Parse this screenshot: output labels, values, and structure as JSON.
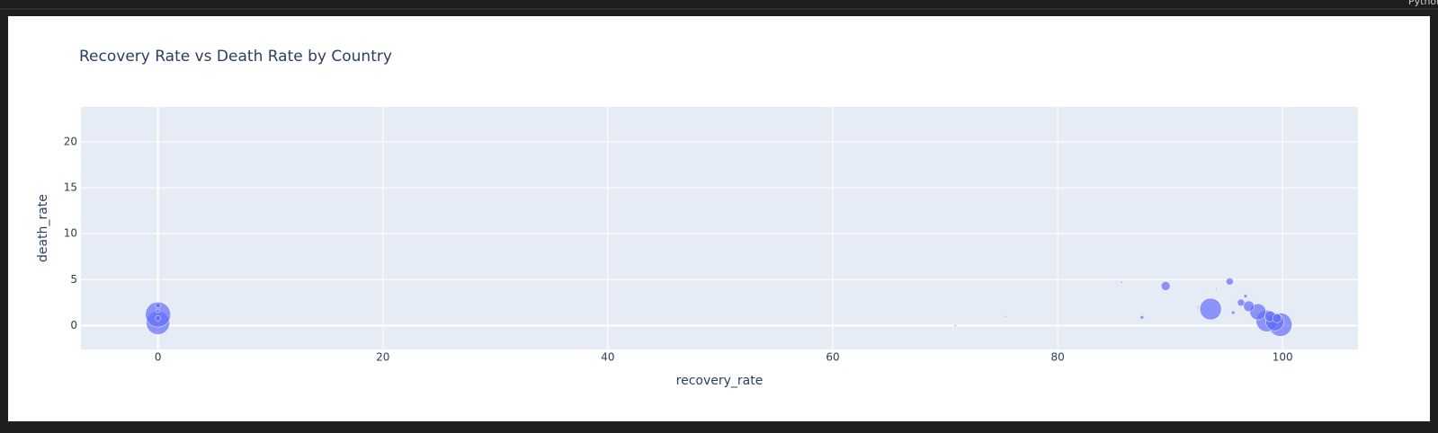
{
  "header": {
    "label": "Python"
  },
  "chart_data": {
    "type": "scatter",
    "title": "Recovery Rate vs Death Rate by Country",
    "xlabel": "recovery_rate",
    "ylabel": "death_rate",
    "x": [
      0,
      0,
      0,
      0,
      0,
      93.6,
      89.6,
      95.3,
      87.5,
      85.7,
      75.4,
      70.9,
      67.3,
      99.8,
      98.6,
      99.3,
      97.8,
      97.0,
      96.3,
      95.6,
      96.7,
      98.9,
      99.5,
      94.1,
      92.5
    ],
    "y": [
      0.3,
      1.2,
      2.2,
      0.8,
      1.6,
      1.8,
      4.3,
      4.8,
      0.9,
      4.7,
      1.0,
      0.0,
      2.5,
      0.1,
      0.5,
      0.4,
      1.5,
      2.1,
      2.5,
      1.4,
      3.2,
      1.0,
      0.8,
      4.0,
      2.0
    ],
    "sizes": [
      13,
      14,
      3,
      3,
      2,
      12,
      5,
      4,
      2,
      1,
      1,
      1,
      0.5,
      13,
      12,
      10,
      9,
      6,
      4,
      2,
      2,
      6,
      5,
      1,
      1
    ],
    "color": "#636efa",
    "xlim": [
      -6.85,
      106.7
    ],
    "ylim": [
      -2.6,
      23.8
    ],
    "xticks": [
      0,
      20,
      40,
      60,
      80,
      100
    ],
    "yticks": [
      0,
      5,
      10,
      15,
      20
    ],
    "grid": true
  }
}
